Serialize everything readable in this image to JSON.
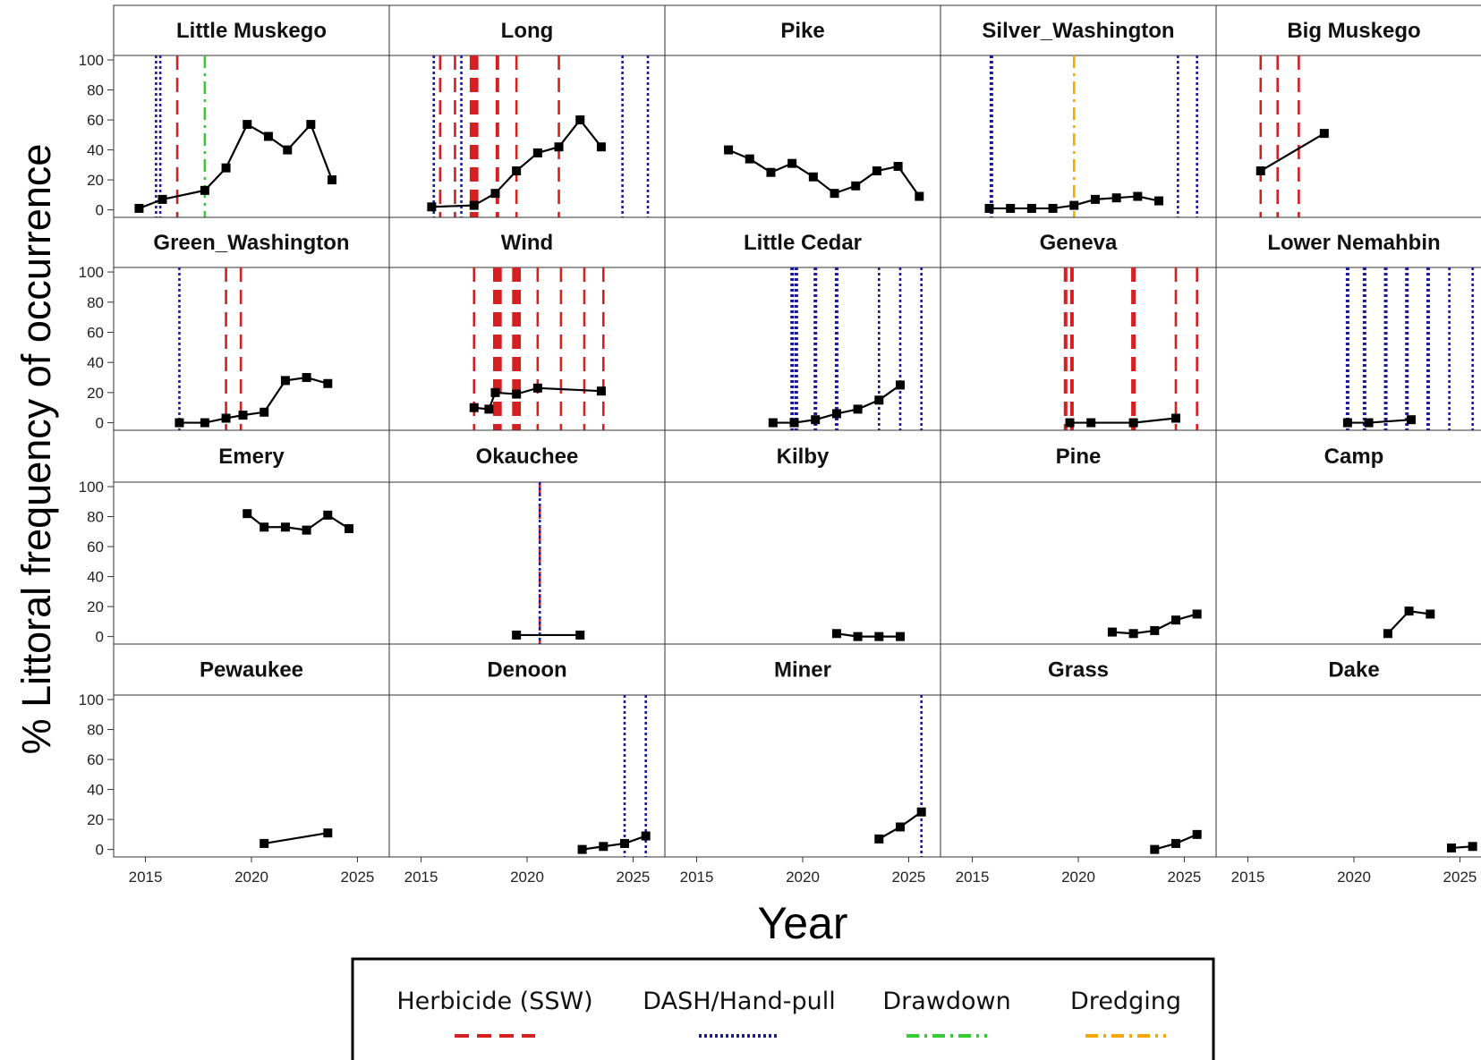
{
  "chart_data": {
    "type": "line",
    "xlabel": "Year",
    "ylabel": "% Littoral frequency of occurrence",
    "xlim": [
      2013.5,
      2026.5
    ],
    "ylim": [
      -5,
      103
    ],
    "xticks": [
      2015,
      2020,
      2025
    ],
    "yticks": [
      0,
      20,
      40,
      60,
      80,
      100
    ],
    "grid": false,
    "legend_position": "bottom",
    "treatments": [
      {
        "key": "herbicide",
        "label": "Herbicide (SSW)",
        "color": "#d42020",
        "style": "dashed"
      },
      {
        "key": "dash",
        "label": "DASH/Hand-pull",
        "color": "#1a1aa0",
        "style": "dotted"
      },
      {
        "key": "drawdown",
        "label": "Drawdown",
        "color": "#33cc33",
        "style": "dashdot"
      },
      {
        "key": "dredging",
        "label": "Dredging",
        "color": "#f5a800",
        "style": "dashdot"
      }
    ],
    "panels": [
      {
        "name": "Little Muskego",
        "points": [
          [
            2014.7,
            1
          ],
          [
            2015.8,
            7
          ],
          [
            2017.8,
            13
          ],
          [
            2018.8,
            28
          ],
          [
            2019.8,
            57
          ],
          [
            2020.8,
            49
          ],
          [
            2021.7,
            40
          ],
          [
            2022.8,
            57
          ],
          [
            2023.8,
            20
          ]
        ],
        "events": [
          {
            "t": "dash",
            "x": 2015.5
          },
          {
            "t": "dash",
            "x": 2015.7
          },
          {
            "t": "herbicide",
            "x": 2016.5
          },
          {
            "t": "drawdown",
            "x": 2017.8
          }
        ]
      },
      {
        "name": "Long",
        "points": [
          [
            2015.5,
            2
          ],
          [
            2017.5,
            3
          ],
          [
            2018.5,
            11
          ],
          [
            2019.5,
            26
          ],
          [
            2020.5,
            38
          ],
          [
            2021.5,
            42
          ],
          [
            2022.5,
            60
          ],
          [
            2023.5,
            42
          ]
        ],
        "events": [
          {
            "t": "dash",
            "x": 2015.6
          },
          {
            "t": "herbicide",
            "x": 2015.9
          },
          {
            "t": "herbicide",
            "x": 2016.6
          },
          {
            "t": "dash",
            "x": 2016.9
          },
          {
            "t": "herbicide",
            "x": 2017.4,
            "w": 5
          },
          {
            "t": "herbicide",
            "x": 2017.6,
            "w": 5
          },
          {
            "t": "herbicide",
            "x": 2018.6,
            "w": 4
          },
          {
            "t": "herbicide",
            "x": 2019.5
          },
          {
            "t": "herbicide",
            "x": 2021.5
          },
          {
            "t": "dash",
            "x": 2024.5
          },
          {
            "t": "dash",
            "x": 2025.7
          }
        ]
      },
      {
        "name": "Pike",
        "points": [
          [
            2016.5,
            40
          ],
          [
            2017.5,
            34
          ],
          [
            2018.5,
            25
          ],
          [
            2019.5,
            31
          ],
          [
            2020.5,
            22
          ],
          [
            2021.5,
            11
          ],
          [
            2022.5,
            16
          ],
          [
            2023.5,
            26
          ],
          [
            2024.5,
            29
          ],
          [
            2025.5,
            9
          ]
        ],
        "events": []
      },
      {
        "name": "Silver_Washington",
        "points": [
          [
            2015.8,
            1
          ],
          [
            2016.8,
            1
          ],
          [
            2017.8,
            1
          ],
          [
            2018.8,
            1
          ],
          [
            2019.8,
            3
          ],
          [
            2020.8,
            7
          ],
          [
            2021.8,
            8
          ],
          [
            2022.8,
            9
          ],
          [
            2023.8,
            6
          ]
        ],
        "events": [
          {
            "t": "dash",
            "x": 2015.9,
            "w": 4
          },
          {
            "t": "dredging",
            "x": 2019.8
          },
          {
            "t": "dash",
            "x": 2024.7
          },
          {
            "t": "dash",
            "x": 2025.6
          }
        ]
      },
      {
        "name": "Big Muskego",
        "points": [
          [
            2015.6,
            26
          ],
          [
            2018.6,
            51
          ]
        ],
        "events": [
          {
            "t": "herbicide",
            "x": 2015.6
          },
          {
            "t": "herbicide",
            "x": 2016.4
          },
          {
            "t": "herbicide",
            "x": 2017.4
          }
        ]
      },
      {
        "name": "Green_Washington",
        "points": [
          [
            2016.6,
            0
          ],
          [
            2017.8,
            0
          ],
          [
            2018.8,
            3
          ],
          [
            2019.6,
            5
          ],
          [
            2020.6,
            7
          ],
          [
            2021.6,
            28
          ],
          [
            2022.6,
            30
          ],
          [
            2023.6,
            26
          ]
        ],
        "events": [
          {
            "t": "dash",
            "x": 2016.6
          },
          {
            "t": "herbicide",
            "x": 2018.8
          },
          {
            "t": "herbicide",
            "x": 2019.5
          }
        ]
      },
      {
        "name": "Wind",
        "points": [
          [
            2017.5,
            10
          ],
          [
            2018.2,
            9
          ],
          [
            2018.5,
            20
          ],
          [
            2019.5,
            19
          ],
          [
            2020.5,
            23
          ],
          [
            2023.5,
            21
          ]
        ],
        "events": [
          {
            "t": "herbicide",
            "x": 2017.5
          },
          {
            "t": "herbicide",
            "x": 2018.5,
            "w": 5
          },
          {
            "t": "herbicide",
            "x": 2018.7,
            "w": 5
          },
          {
            "t": "herbicide",
            "x": 2019.4,
            "w": 5
          },
          {
            "t": "herbicide",
            "x": 2019.6,
            "w": 5
          },
          {
            "t": "herbicide",
            "x": 2020.5
          },
          {
            "t": "herbicide",
            "x": 2021.6
          },
          {
            "t": "herbicide",
            "x": 2022.7
          },
          {
            "t": "herbicide",
            "x": 2023.6
          }
        ]
      },
      {
        "name": "Little Cedar",
        "points": [
          [
            2018.6,
            0
          ],
          [
            2019.6,
            0
          ],
          [
            2020.6,
            2
          ],
          [
            2021.6,
            6
          ],
          [
            2022.6,
            9
          ],
          [
            2023.6,
            15
          ],
          [
            2024.6,
            25
          ]
        ],
        "events": [
          {
            "t": "dash",
            "x": 2019.5,
            "w": 4
          },
          {
            "t": "dash",
            "x": 2019.7,
            "w": 4
          },
          {
            "t": "dash",
            "x": 2020.6,
            "w": 4
          },
          {
            "t": "dash",
            "x": 2021.6,
            "w": 4
          },
          {
            "t": "dash",
            "x": 2023.6
          },
          {
            "t": "dash",
            "x": 2024.6
          },
          {
            "t": "dash",
            "x": 2025.6
          }
        ]
      },
      {
        "name": "Geneva",
        "points": [
          [
            2019.6,
            0
          ],
          [
            2020.6,
            0
          ],
          [
            2022.6,
            0
          ],
          [
            2024.6,
            3
          ]
        ],
        "events": [
          {
            "t": "herbicide",
            "x": 2019.4,
            "w": 4
          },
          {
            "t": "herbicide",
            "x": 2019.7,
            "w": 4
          },
          {
            "t": "herbicide",
            "x": 2022.6,
            "w": 5
          },
          {
            "t": "herbicide",
            "x": 2024.6
          },
          {
            "t": "herbicide",
            "x": 2025.6
          }
        ]
      },
      {
        "name": "Lower Nemahbin",
        "points": [
          [
            2019.7,
            0
          ],
          [
            2020.7,
            0
          ],
          [
            2022.7,
            2
          ]
        ],
        "events": [
          {
            "t": "dash",
            "x": 2019.7,
            "w": 4
          },
          {
            "t": "dash",
            "x": 2020.5,
            "w": 4
          },
          {
            "t": "dash",
            "x": 2021.5,
            "w": 4
          },
          {
            "t": "dash",
            "x": 2022.5,
            "w": 4
          },
          {
            "t": "dash",
            "x": 2023.5,
            "w": 4
          },
          {
            "t": "dash",
            "x": 2024.5
          },
          {
            "t": "dash",
            "x": 2025.6
          }
        ]
      },
      {
        "name": "Emery",
        "points": [
          [
            2019.8,
            82
          ],
          [
            2020.6,
            73
          ],
          [
            2021.6,
            73
          ],
          [
            2022.6,
            71
          ],
          [
            2023.6,
            81
          ],
          [
            2024.6,
            72
          ]
        ],
        "events": []
      },
      {
        "name": "Okauchee",
        "points": [
          [
            2019.5,
            1
          ],
          [
            2022.5,
            1
          ]
        ],
        "events": [
          {
            "t": "herbicide",
            "x": 2020.6
          },
          {
            "t": "dash",
            "x": 2020.6
          }
        ]
      },
      {
        "name": "Kilby",
        "points": [
          [
            2021.6,
            2
          ],
          [
            2022.6,
            0
          ],
          [
            2023.6,
            0
          ],
          [
            2024.6,
            0
          ]
        ],
        "events": []
      },
      {
        "name": "Pine",
        "points": [
          [
            2021.6,
            3
          ],
          [
            2022.6,
            2
          ],
          [
            2023.6,
            4
          ],
          [
            2024.6,
            11
          ],
          [
            2025.6,
            15
          ]
        ],
        "events": []
      },
      {
        "name": "Camp",
        "points": [
          [
            2021.6,
            2
          ],
          [
            2022.6,
            17
          ],
          [
            2023.6,
            15
          ]
        ],
        "events": []
      },
      {
        "name": "Pewaukee",
        "points": [
          [
            2020.6,
            4
          ],
          [
            2023.6,
            11
          ]
        ],
        "events": []
      },
      {
        "name": "Denoon",
        "points": [
          [
            2022.6,
            0
          ],
          [
            2023.6,
            2
          ],
          [
            2024.6,
            4
          ],
          [
            2025.6,
            9
          ]
        ],
        "events": [
          {
            "t": "dash",
            "x": 2024.6
          },
          {
            "t": "dash",
            "x": 2025.6
          }
        ]
      },
      {
        "name": "Miner",
        "points": [
          [
            2023.6,
            7
          ],
          [
            2024.6,
            15
          ],
          [
            2025.6,
            25
          ]
        ],
        "events": [
          {
            "t": "dash",
            "x": 2025.6
          }
        ]
      },
      {
        "name": "Grass",
        "points": [
          [
            2023.6,
            0
          ],
          [
            2024.6,
            4
          ],
          [
            2025.6,
            10
          ]
        ],
        "events": []
      },
      {
        "name": "Dake",
        "points": [
          [
            2024.6,
            1
          ],
          [
            2025.6,
            2
          ]
        ],
        "events": []
      }
    ]
  }
}
